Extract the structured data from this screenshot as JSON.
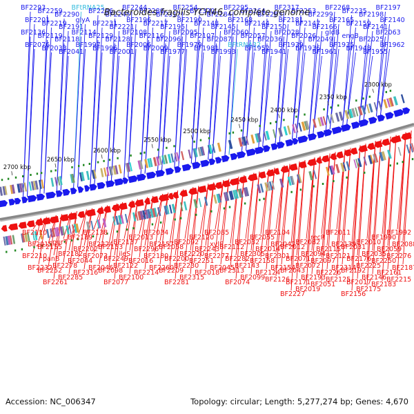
{
  "title": "Bacteroides fragilis YCH46, complete genome",
  "footer": {
    "accession": "Accession: NC_006347",
    "summary": "Topology: circular; Length: 5,277,274 bp; Genes: 4,670"
  },
  "colors": {
    "forward": "#1a1aee",
    "reverse": "#ee1111",
    "rna": "#33bbdd",
    "backbone": "#888888"
  },
  "scale_ticks": [
    "2300 kbp",
    "2350 kbp",
    "2400 kbp",
    "2450 kbp",
    "2500 kbp",
    "2550 kbp",
    "2600 kbp",
    "2650 kbp",
    "2700 kbp"
  ],
  "forward_labels": [
    "BF2293",
    "BF2259",
    "BF2290",
    "BFtRNA25",
    "BF2246",
    "BF2245",
    "BF2244",
    "BF2280",
    "BF2312",
    "BF2254",
    "BF2320",
    "BF2284",
    "BF2295",
    "BF2264",
    "BF2283",
    "BF2317",
    "BF2253",
    "BF2299",
    "BF2268",
    "BF2235",
    "BF2198",
    "BF2197",
    "BF2201",
    "BF2219",
    "BF2191",
    "glyA",
    "BF2231",
    "BF2221",
    "BF2196",
    "BF2217",
    "BF2195",
    "BF2190",
    "BF2148",
    "BF2145",
    "BF2168",
    "BF2144",
    "BF2150",
    "BF2181",
    "BF2147",
    "BF2166",
    "BF2165",
    "BF2159",
    "BF2141",
    "BF2140",
    "BF2136",
    "BF2119",
    "BF2118",
    "BF2114",
    "BF2129",
    "BF2128",
    "BF2108",
    "BF2116",
    "BF2096",
    "BF2095",
    "BF2107",
    "BF2087",
    "BF2060",
    "BF2057",
    "BF2036",
    "BF2028",
    "BF2026",
    "BF2049",
    "gldB",
    "engB",
    "BF2025",
    "BF2063",
    "BF2076",
    "BF2033",
    "BF2041",
    "BF1997",
    "BF1996",
    "BF2001",
    "BF2006",
    "BF2009",
    "BF1977",
    "BF1979",
    "BF1981",
    "BF1993",
    "BFtRNA32",
    "BF1952",
    "BF1941",
    "BF1939",
    "BF1936",
    "BF1961",
    "BF1935",
    "BF1948",
    "BF1955",
    "BF1962"
  ],
  "reverse_labels": [
    "BF1992",
    "BF1990",
    "BF2010",
    "BF2031",
    "BF2011",
    "recR",
    "BF2082",
    "BF2012",
    "BF2104",
    "BF2055",
    "BF2032",
    "BF2112",
    "BF2085",
    "BF2120",
    "BF2092",
    "BF2058",
    "BF2034",
    "BF2013",
    "BF2137",
    "BF2153",
    "BF2138",
    "BF2189",
    "purT",
    "BF2155",
    "BF2110",
    "BF2088",
    "BF2059",
    "BF2035",
    "BF2176",
    "BF2139",
    "BF2115",
    "BF2094",
    "BF2071",
    "BF2042",
    "BF2014",
    "BF2305",
    "BF2282",
    "xylE",
    "BF2243",
    "BF2220",
    "BF2200",
    "BF2157",
    "BF2296",
    "ileS",
    "BF2249",
    "BF2224",
    "BF2202",
    "BF2182",
    "panB",
    "BF2015",
    "BF2276",
    "BF2250",
    "BF2225",
    "BF2192",
    "BF2121",
    "BF2097",
    "BF2072",
    "BF2043",
    "BF2301",
    "BF2158",
    "BF2143",
    "BF2313",
    "BF2277",
    "BF2251",
    "BF2230",
    "BF2209",
    "BF2180",
    "BF2016",
    "BF2122",
    "BF2098",
    "BF2073",
    "BF2044",
    "BF2278",
    "BF2252",
    "BF2210",
    "BF2187",
    "BF2161",
    "BF2146",
    "BF2017",
    "BF2314",
    "BF2226",
    "BF2193",
    "BF2171",
    "BF2154",
    "BF2124",
    "BF2099",
    "BF2074",
    "BF2045",
    "BF2018",
    "BF2315",
    "BF2281",
    "BF2260",
    "BF2214",
    "BF2100",
    "BF2077",
    "BF2046",
    "BF2316",
    "BF2285",
    "BF2261",
    "BF2232",
    "BF2215",
    "BF2183",
    "BF2175",
    "BF2156",
    "BF2125",
    "BF2051",
    "BF2019",
    "BF2227",
    "BF2126"
  ]
}
